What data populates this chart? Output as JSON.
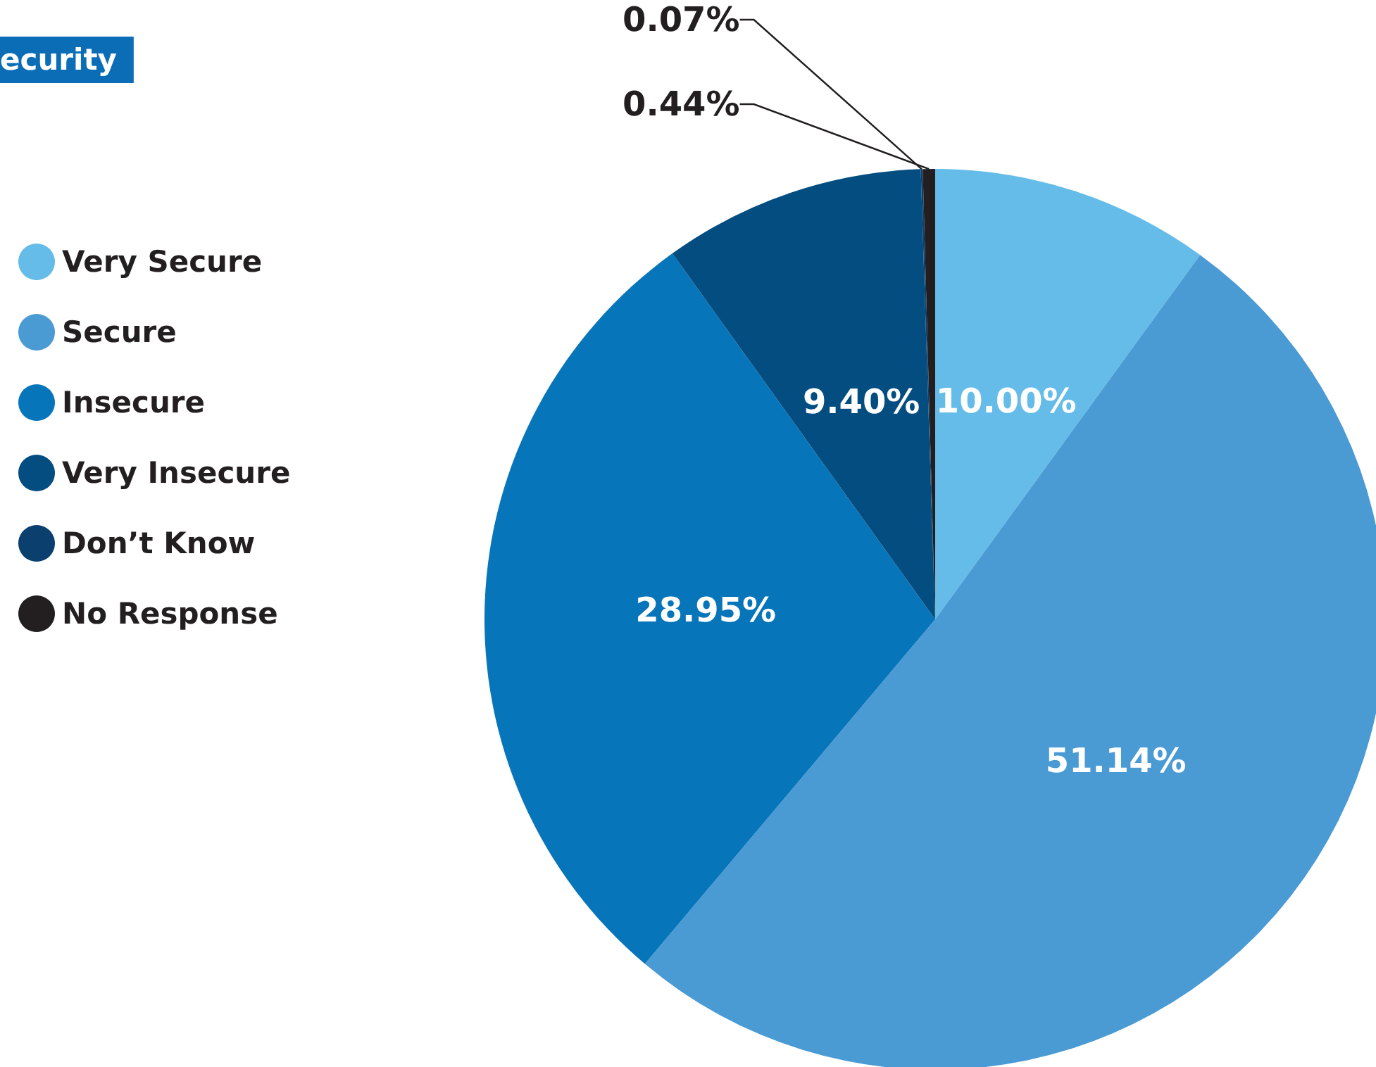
{
  "chart_data": {
    "type": "pie",
    "title": "ecurity",
    "categories": [
      "Very Secure",
      "Secure",
      "Insecure",
      "Very Insecure",
      "Don’t Know",
      "No Response"
    ],
    "values": [
      10.0,
      51.14,
      28.95,
      9.4,
      0.07,
      0.44
    ],
    "colors": [
      "#66bce8",
      "#4a9ad4",
      "#0775b9",
      "#044d80",
      "#0a3f6e",
      "#231f20"
    ],
    "value_labels": [
      "10.00%",
      "51.14%",
      "28.95%",
      "9.40%",
      "0.07%",
      "0.44%"
    ],
    "legend": "left"
  }
}
